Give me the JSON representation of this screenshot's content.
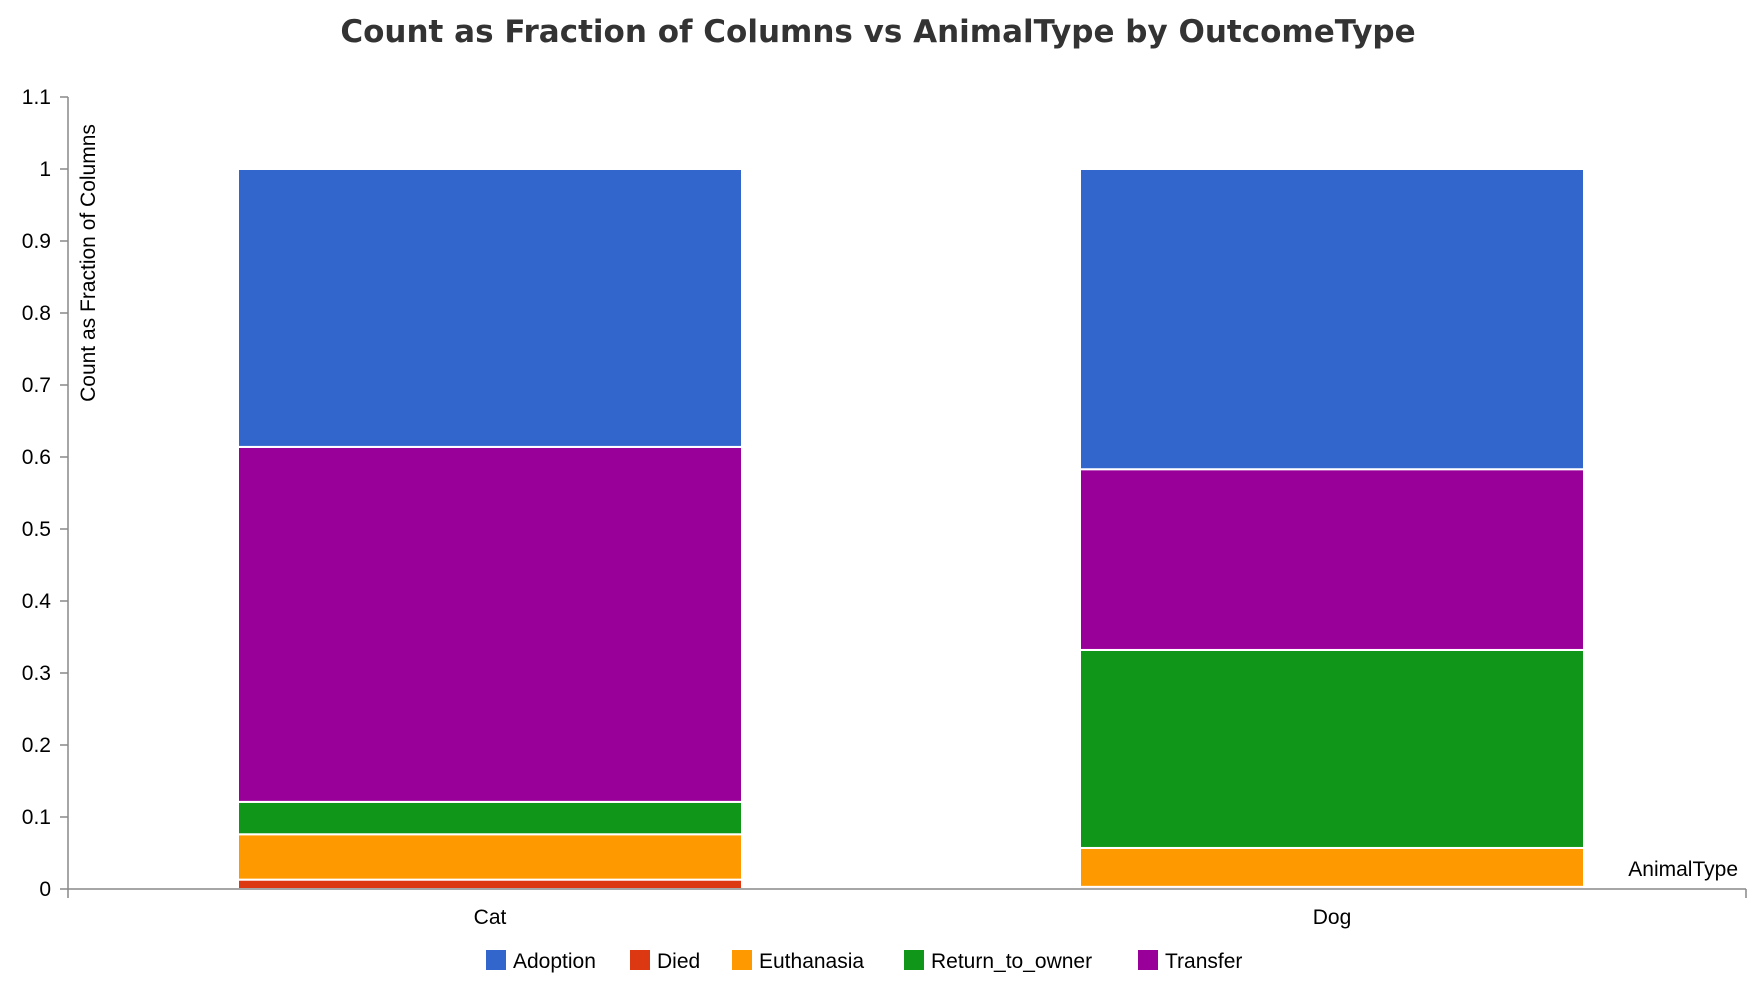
{
  "chart_data": {
    "type": "bar",
    "stacked": true,
    "title": "Count as Fraction of Columns vs AnimalType by OutcomeType",
    "xlabel": "AnimalType",
    "ylabel": "Count as Fraction of Columns",
    "ylim": [
      0,
      1.1
    ],
    "yticks": [
      "0",
      "0.1",
      "0.2",
      "0.3",
      "0.4",
      "0.5",
      "0.6",
      "0.7",
      "0.8",
      "0.9",
      "1",
      "1.1"
    ],
    "categories": [
      "Cat",
      "Dog"
    ],
    "legend_position": "bottom",
    "grid": false,
    "series": [
      {
        "name": "Died",
        "color": "#dc3912",
        "values": [
          0.013,
          0.003
        ]
      },
      {
        "name": "Euthanasia",
        "color": "#ff9900",
        "values": [
          0.063,
          0.054
        ]
      },
      {
        "name": "Return_to_owner",
        "color": "#109618",
        "values": [
          0.045,
          0.275
        ]
      },
      {
        "name": "Transfer",
        "color": "#990099",
        "values": [
          0.493,
          0.251
        ]
      },
      {
        "name": "Adoption",
        "color": "#3366cc",
        "values": [
          0.386,
          0.417
        ]
      }
    ],
    "legend": [
      {
        "name": "Adoption",
        "color": "#3366cc"
      },
      {
        "name": "Died",
        "color": "#dc3912"
      },
      {
        "name": "Euthanasia",
        "color": "#ff9900"
      },
      {
        "name": "Return_to_owner",
        "color": "#109618"
      },
      {
        "name": "Transfer",
        "color": "#990099"
      }
    ]
  }
}
